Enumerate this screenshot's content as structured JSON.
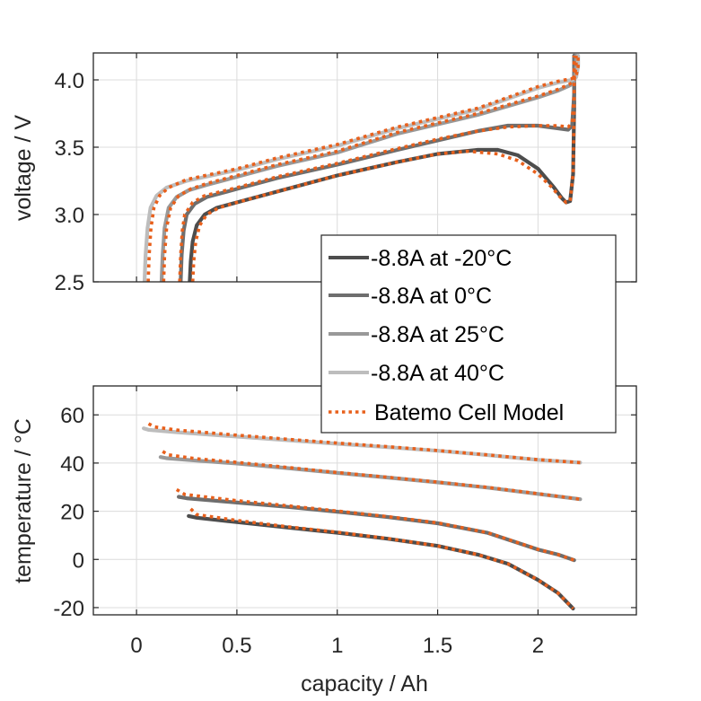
{
  "chart_data": [
    {
      "type": "line",
      "panel": "top",
      "title": "",
      "xlabel": "",
      "ylabel": "voltage / V",
      "xlim": [
        -0.215,
        2.49
      ],
      "ylim": [
        2.5,
        4.2
      ],
      "grid": true,
      "xticks": [
        0,
        0.5,
        1,
        1.5,
        2
      ],
      "xtick_labels_visible": false,
      "yticks": [
        2.5,
        3.0,
        3.5,
        4.0
      ],
      "ytick_labels": [
        "2.5",
        "3.0",
        "3.5",
        "4.0"
      ],
      "series": [
        {
          "name": "-8.8A at -20°C",
          "style": "solid",
          "color": "#4d4d4d",
          "x": [
            0.265,
            0.27,
            0.28,
            0.3,
            0.34,
            0.4,
            0.5,
            0.7,
            1.0,
            1.3,
            1.5,
            1.7,
            1.8,
            1.9,
            2.0,
            2.08,
            2.12,
            2.14,
            2.16,
            2.175,
            2.18,
            2.18
          ],
          "y": [
            2.5,
            2.65,
            2.8,
            2.92,
            3.0,
            3.05,
            3.09,
            3.17,
            3.29,
            3.39,
            3.45,
            3.48,
            3.48,
            3.44,
            3.34,
            3.2,
            3.12,
            3.09,
            3.1,
            3.3,
            3.8,
            4.18
          ]
        },
        {
          "name": "-8.8A at 0°C",
          "style": "solid",
          "color": "#6e6e6e",
          "x": [
            0.22,
            0.225,
            0.235,
            0.25,
            0.29,
            0.35,
            0.5,
            0.7,
            1.0,
            1.3,
            1.5,
            1.7,
            1.85,
            2.0,
            2.1,
            2.15,
            2.17,
            2.18,
            2.18
          ],
          "y": [
            2.5,
            2.7,
            2.88,
            3.0,
            3.08,
            3.13,
            3.19,
            3.27,
            3.37,
            3.48,
            3.55,
            3.62,
            3.66,
            3.66,
            3.64,
            3.63,
            3.66,
            3.9,
            4.18
          ]
        },
        {
          "name": "-8.8A at 25°C",
          "style": "solid",
          "color": "#999999",
          "x": [
            0.125,
            0.13,
            0.14,
            0.16,
            0.2,
            0.26,
            0.35,
            0.5,
            0.7,
            1.0,
            1.3,
            1.5,
            1.7,
            2.0,
            2.1,
            2.16,
            2.18,
            2.19,
            2.19
          ],
          "y": [
            2.5,
            2.7,
            2.9,
            3.05,
            3.13,
            3.18,
            3.22,
            3.28,
            3.36,
            3.46,
            3.6,
            3.67,
            3.74,
            3.87,
            3.92,
            3.96,
            3.99,
            4.1,
            4.18
          ]
        },
        {
          "name": "-8.8A at 40°C",
          "style": "solid",
          "color": "#bdbdbd",
          "x": [
            0.04,
            0.045,
            0.055,
            0.07,
            0.1,
            0.15,
            0.25,
            0.5,
            0.7,
            1.0,
            1.3,
            1.5,
            1.7,
            2.0,
            2.1,
            2.17,
            2.19,
            2.2,
            2.2
          ],
          "y": [
            2.5,
            2.7,
            2.9,
            3.05,
            3.14,
            3.2,
            3.25,
            3.33,
            3.41,
            3.51,
            3.64,
            3.71,
            3.78,
            3.94,
            3.98,
            4.0,
            4.02,
            4.1,
            4.18
          ]
        },
        {
          "name": "Batemo Cell Model",
          "style": "dotted",
          "color": "#e8601c",
          "group": "-20°C",
          "x": [
            0.28,
            0.285,
            0.295,
            0.315,
            0.35,
            0.41,
            0.5,
            0.7,
            1.0,
            1.3,
            1.5,
            1.65,
            1.8,
            1.9,
            2.0,
            2.07,
            2.11,
            2.14,
            2.16,
            2.175,
            2.18,
            2.18
          ],
          "y": [
            2.5,
            2.65,
            2.8,
            2.92,
            3.0,
            3.05,
            3.09,
            3.17,
            3.29,
            3.39,
            3.45,
            3.47,
            3.45,
            3.4,
            3.3,
            3.2,
            3.13,
            3.09,
            3.1,
            3.3,
            3.8,
            4.18
          ]
        },
        {
          "name": "Batemo Cell Model",
          "style": "dotted",
          "color": "#e8601c",
          "group": "0°C",
          "x": [
            0.215,
            0.22,
            0.228,
            0.24,
            0.28,
            0.34,
            0.5,
            0.7,
            1.0,
            1.3,
            1.5,
            1.7,
            1.85,
            2.0,
            2.1,
            2.15,
            2.17,
            2.18,
            2.18
          ],
          "y": [
            2.5,
            2.7,
            2.88,
            3.0,
            3.09,
            3.14,
            3.2,
            3.28,
            3.38,
            3.49,
            3.56,
            3.62,
            3.65,
            3.66,
            3.66,
            3.65,
            3.68,
            3.9,
            4.18
          ]
        },
        {
          "name": "Batemo Cell Model",
          "style": "dotted",
          "color": "#e8601c",
          "group": "25°C",
          "x": [
            0.135,
            0.14,
            0.15,
            0.17,
            0.21,
            0.27,
            0.35,
            0.5,
            0.7,
            1.0,
            1.3,
            1.5,
            1.7,
            2.0,
            2.1,
            2.16,
            2.18,
            2.19,
            2.19
          ],
          "y": [
            2.5,
            2.7,
            2.9,
            3.05,
            3.14,
            3.19,
            3.23,
            3.29,
            3.37,
            3.47,
            3.61,
            3.68,
            3.75,
            3.88,
            3.93,
            3.97,
            4.0,
            4.1,
            4.18
          ]
        },
        {
          "name": "Batemo Cell Model",
          "style": "dotted",
          "color": "#e8601c",
          "group": "40°C",
          "x": [
            0.058,
            0.063,
            0.072,
            0.087,
            0.115,
            0.16,
            0.25,
            0.5,
            0.7,
            1.0,
            1.3,
            1.5,
            1.7,
            2.0,
            2.1,
            2.17,
            2.19,
            2.2,
            2.2
          ],
          "y": [
            2.5,
            2.7,
            2.9,
            3.05,
            3.14,
            3.2,
            3.26,
            3.34,
            3.42,
            3.52,
            3.65,
            3.72,
            3.79,
            3.95,
            3.99,
            4.01,
            4.03,
            4.1,
            4.18
          ]
        }
      ]
    },
    {
      "type": "line",
      "panel": "bottom",
      "title": "",
      "xlabel": "capacity / Ah",
      "ylabel": "temperature / °C",
      "xlim": [
        -0.215,
        2.49
      ],
      "ylim": [
        -23,
        72
      ],
      "grid": true,
      "xticks": [
        0,
        0.5,
        1,
        1.5,
        2
      ],
      "xtick_labels": [
        "0",
        "0.5",
        "1",
        "1.5",
        "2"
      ],
      "yticks": [
        -20,
        0,
        20,
        40,
        60
      ],
      "ytick_labels": [
        "-20",
        "0",
        "20",
        "40",
        "60"
      ],
      "series": [
        {
          "name": "-8.8A at -20°C",
          "style": "solid",
          "color": "#4d4d4d",
          "x": [
            0.26,
            0.3,
            0.5,
            0.75,
            1.0,
            1.25,
            1.5,
            1.7,
            1.85,
            2.0,
            2.1,
            2.175
          ],
          "y": [
            18.0,
            17.3,
            15.5,
            13.3,
            11.1,
            8.6,
            5.6,
            2.0,
            -1.8,
            -8.5,
            -14.0,
            -20.4
          ]
        },
        {
          "name": "-8.8A at 0°C",
          "style": "solid",
          "color": "#6e6e6e",
          "x": [
            0.21,
            0.25,
            0.5,
            0.75,
            1.0,
            1.25,
            1.5,
            1.75,
            2.0,
            2.1,
            2.18
          ],
          "y": [
            26.0,
            25.4,
            23.6,
            21.8,
            19.8,
            17.6,
            15.0,
            11.0,
            4.1,
            2.0,
            -0.3
          ]
        },
        {
          "name": "-8.8A at 25°C",
          "style": "solid",
          "color": "#999999",
          "x": [
            0.12,
            0.15,
            0.3,
            0.5,
            0.75,
            1.0,
            1.25,
            1.5,
            1.75,
            2.0,
            2.21
          ],
          "y": [
            42.5,
            42.0,
            41.0,
            39.8,
            37.9,
            35.9,
            34.0,
            32.0,
            29.8,
            27.2,
            25.0
          ]
        },
        {
          "name": "-8.8A at 40°C",
          "style": "solid",
          "color": "#bdbdbd",
          "x": [
            0.036,
            0.06,
            0.2,
            0.5,
            0.75,
            1.0,
            1.25,
            1.5,
            1.75,
            2.0,
            2.21
          ],
          "y": [
            54.4,
            53.8,
            52.8,
            51.0,
            49.5,
            48.0,
            46.6,
            45.1,
            43.3,
            41.3,
            40.2
          ]
        },
        {
          "name": "Batemo Cell Model",
          "style": "dotted",
          "color": "#e8601c",
          "group": "-20°C",
          "x": [
            0.27,
            0.3,
            0.5,
            0.75,
            1.0,
            1.25,
            1.5,
            1.7,
            1.85,
            2.0,
            2.1,
            2.175
          ],
          "y": [
            21.0,
            18.6,
            16.2,
            13.6,
            11.3,
            8.7,
            5.6,
            2.0,
            -1.8,
            -8.5,
            -14.0,
            -20.4
          ]
        },
        {
          "name": "Batemo Cell Model",
          "style": "dotted",
          "color": "#e8601c",
          "group": "0°C",
          "x": [
            0.2,
            0.24,
            0.5,
            0.75,
            1.0,
            1.25,
            1.5,
            1.75,
            2.0,
            2.1,
            2.18
          ],
          "y": [
            29.0,
            27.0,
            24.4,
            22.3,
            20.1,
            17.8,
            15.2,
            11.1,
            4.2,
            2.0,
            -0.3
          ]
        },
        {
          "name": "Batemo Cell Model",
          "style": "dotted",
          "color": "#e8601c",
          "group": "25°C",
          "x": [
            0.13,
            0.16,
            0.3,
            0.5,
            0.75,
            1.0,
            1.25,
            1.5,
            1.75,
            2.0,
            2.21
          ],
          "y": [
            44.8,
            43.4,
            41.8,
            40.3,
            38.2,
            36.1,
            34.1,
            32.1,
            29.9,
            27.3,
            25.0
          ]
        },
        {
          "name": "Batemo Cell Model",
          "style": "dotted",
          "color": "#e8601c",
          "group": "40°C",
          "x": [
            0.06,
            0.09,
            0.2,
            0.5,
            0.75,
            1.0,
            1.25,
            1.5,
            1.75,
            2.0,
            2.21
          ],
          "y": [
            56.3,
            55.0,
            53.7,
            51.6,
            49.9,
            48.3,
            46.8,
            45.2,
            43.4,
            41.4,
            40.2
          ]
        }
      ]
    }
  ],
  "legend": {
    "placement": "top-plot bottom-right, overlapping between panels",
    "entries": [
      {
        "label": "-8.8A at -20°C",
        "style": "solid",
        "color": "#4d4d4d"
      },
      {
        "label": "-8.8A at 0°C",
        "style": "solid",
        "color": "#6e6e6e"
      },
      {
        "label": "-8.8A at 25°C",
        "style": "solid",
        "color": "#999999"
      },
      {
        "label": "-8.8A at 40°C",
        "style": "solid",
        "color": "#bdbdbd"
      },
      {
        "label": "Batemo Cell Model",
        "style": "dotted",
        "color": "#e8601c"
      }
    ]
  }
}
